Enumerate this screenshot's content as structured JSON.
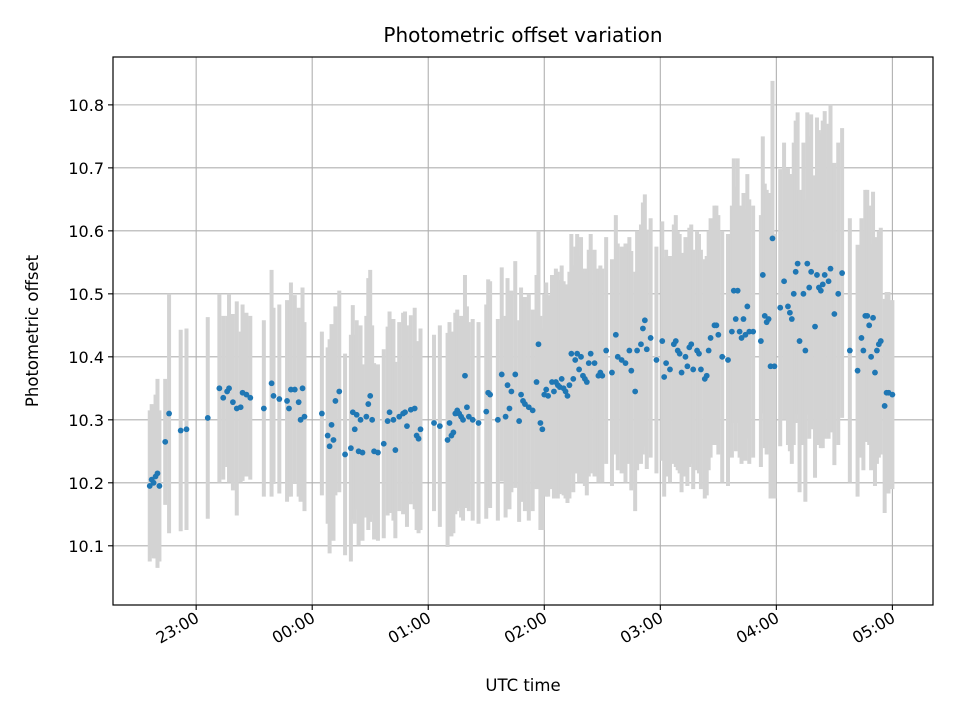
{
  "chart_data": {
    "type": "scatter",
    "title": "Photometric offset variation",
    "xlabel": "UTC time",
    "ylabel": "Photometric offset",
    "grid": true,
    "x_unit": "UTC time (HH:MM)",
    "xlim": [
      "22:17",
      "05:21"
    ],
    "ylim": [
      10.006,
      10.876
    ],
    "xticks": [
      "23:00",
      "00:00",
      "01:00",
      "02:00",
      "03:00",
      "04:00",
      "05:00"
    ],
    "yticks": [
      10.1,
      10.2,
      10.3,
      10.4,
      10.5,
      10.6,
      10.7,
      10.8
    ],
    "colors": {
      "points": "#1f77b4",
      "errorbars": "#d3d3d3",
      "grid": "#b0b0b0"
    },
    "points": [
      {
        "t": "22:36",
        "y": 10.195,
        "err": 0.12
      },
      {
        "t": "22:37",
        "y": 10.205,
        "err": 0.12
      },
      {
        "t": "22:38",
        "y": 10.2,
        "err": 0.12
      },
      {
        "t": "22:39",
        "y": 10.21,
        "err": 0.13
      },
      {
        "t": "22:40",
        "y": 10.215,
        "err": 0.15
      },
      {
        "t": "22:41",
        "y": 10.195,
        "err": 0.12
      },
      {
        "t": "22:44",
        "y": 10.265,
        "err": 0.1
      },
      {
        "t": "22:46",
        "y": 10.31,
        "err": 0.19
      },
      {
        "t": "22:52",
        "y": 10.283,
        "err": 0.16
      },
      {
        "t": "22:55",
        "y": 10.285,
        "err": 0.16
      },
      {
        "t": "23:06",
        "y": 10.303,
        "err": 0.16
      },
      {
        "t": "23:12",
        "y": 10.35,
        "err": 0.15
      },
      {
        "t": "23:14",
        "y": 10.335,
        "err": 0.13
      },
      {
        "t": "23:16",
        "y": 10.345,
        "err": 0.12
      },
      {
        "t": "23:17",
        "y": 10.35,
        "err": 0.15
      },
      {
        "t": "23:19",
        "y": 10.328,
        "err": 0.14
      },
      {
        "t": "23:21",
        "y": 10.318,
        "err": 0.17
      },
      {
        "t": "23:23",
        "y": 10.32,
        "err": 0.12
      },
      {
        "t": "23:24",
        "y": 10.343,
        "err": 0.14
      },
      {
        "t": "23:26",
        "y": 10.34,
        "err": 0.13
      },
      {
        "t": "23:28",
        "y": 10.335,
        "err": 0.13
      },
      {
        "t": "23:35",
        "y": 10.318,
        "err": 0.14
      },
      {
        "t": "23:39",
        "y": 10.358,
        "err": 0.18
      },
      {
        "t": "23:40",
        "y": 10.338,
        "err": 0.14
      },
      {
        "t": "23:43",
        "y": 10.333,
        "err": 0.15
      },
      {
        "t": "23:47",
        "y": 10.33,
        "err": 0.16
      },
      {
        "t": "23:48",
        "y": 10.318,
        "err": 0.14
      },
      {
        "t": "23:49",
        "y": 10.348,
        "err": 0.17
      },
      {
        "t": "23:51",
        "y": 10.348,
        "err": 0.15
      },
      {
        "t": "23:53",
        "y": 10.328,
        "err": 0.15
      },
      {
        "t": "23:54",
        "y": 10.3,
        "err": 0.13
      },
      {
        "t": "23:55",
        "y": 10.35,
        "err": 0.16
      },
      {
        "t": "23:56",
        "y": 10.305,
        "err": 0.15
      },
      {
        "t": "00:05",
        "y": 10.31,
        "err": 0.13
      },
      {
        "t": "00:08",
        "y": 10.275,
        "err": 0.14
      },
      {
        "t": "00:09",
        "y": 10.258,
        "err": 0.17
      },
      {
        "t": "00:10",
        "y": 10.292,
        "err": 0.16
      },
      {
        "t": "00:11",
        "y": 10.268,
        "err": 0.16
      },
      {
        "t": "00:12",
        "y": 10.33,
        "err": 0.15
      },
      {
        "t": "00:14",
        "y": 10.345,
        "err": 0.16
      },
      {
        "t": "00:17",
        "y": 10.245,
        "err": 0.16
      },
      {
        "t": "00:20",
        "y": 10.255,
        "err": 0.18
      },
      {
        "t": "00:21",
        "y": 10.312,
        "err": 0.17
      },
      {
        "t": "00:22",
        "y": 10.285,
        "err": 0.15
      },
      {
        "t": "00:23",
        "y": 10.308,
        "err": 0.15
      },
      {
        "t": "00:24",
        "y": 10.25,
        "err": 0.15
      },
      {
        "t": "00:25",
        "y": 10.3,
        "err": 0.15
      },
      {
        "t": "00:26",
        "y": 10.248,
        "err": 0.14
      },
      {
        "t": "00:28",
        "y": 10.305,
        "err": 0.16
      },
      {
        "t": "00:29",
        "y": 10.325,
        "err": 0.2
      },
      {
        "t": "00:30",
        "y": 10.338,
        "err": 0.2
      },
      {
        "t": "00:31",
        "y": 10.3,
        "err": 0.15
      },
      {
        "t": "00:32",
        "y": 10.25,
        "err": 0.14
      },
      {
        "t": "00:34",
        "y": 10.248,
        "err": 0.14
      },
      {
        "t": "00:37",
        "y": 10.262,
        "err": 0.15
      },
      {
        "t": "00:39",
        "y": 10.298,
        "err": 0.15
      },
      {
        "t": "00:40",
        "y": 10.312,
        "err": 0.16
      },
      {
        "t": "00:42",
        "y": 10.3,
        "err": 0.16
      },
      {
        "t": "00:43",
        "y": 10.252,
        "err": 0.14
      },
      {
        "t": "00:45",
        "y": 10.305,
        "err": 0.15
      },
      {
        "t": "00:47",
        "y": 10.31,
        "err": 0.16
      },
      {
        "t": "00:48",
        "y": 10.312,
        "err": 0.16
      },
      {
        "t": "00:49",
        "y": 10.29,
        "err": 0.16
      },
      {
        "t": "00:51",
        "y": 10.316,
        "err": 0.15
      },
      {
        "t": "00:53",
        "y": 10.318,
        "err": 0.16
      },
      {
        "t": "00:54",
        "y": 10.275,
        "err": 0.15
      },
      {
        "t": "00:55",
        "y": 10.27,
        "err": 0.15
      },
      {
        "t": "00:56",
        "y": 10.285,
        "err": 0.16
      },
      {
        "t": "01:03",
        "y": 10.295,
        "err": 0.14
      },
      {
        "t": "01:06",
        "y": 10.29,
        "err": 0.16
      },
      {
        "t": "01:10",
        "y": 10.268,
        "err": 0.17
      },
      {
        "t": "01:11",
        "y": 10.295,
        "err": 0.16
      },
      {
        "t": "01:12",
        "y": 10.275,
        "err": 0.16
      },
      {
        "t": "01:13",
        "y": 10.28,
        "err": 0.16
      },
      {
        "t": "01:14",
        "y": 10.31,
        "err": 0.16
      },
      {
        "t": "01:15",
        "y": 10.315,
        "err": 0.16
      },
      {
        "t": "01:16",
        "y": 10.31,
        "err": 0.15
      },
      {
        "t": "01:17",
        "y": 10.305,
        "err": 0.16
      },
      {
        "t": "01:18",
        "y": 10.3,
        "err": 0.16
      },
      {
        "t": "01:19",
        "y": 10.37,
        "err": 0.16
      },
      {
        "t": "01:20",
        "y": 10.32,
        "err": 0.16
      },
      {
        "t": "01:21",
        "y": 10.305,
        "err": 0.15
      },
      {
        "t": "01:23",
        "y": 10.3,
        "err": 0.16
      },
      {
        "t": "01:26",
        "y": 10.295,
        "err": 0.16
      },
      {
        "t": "01:30",
        "y": 10.313,
        "err": 0.17
      },
      {
        "t": "01:31",
        "y": 10.343,
        "err": 0.18
      },
      {
        "t": "01:32",
        "y": 10.34,
        "err": 0.18
      },
      {
        "t": "01:36",
        "y": 10.3,
        "err": 0.16
      },
      {
        "t": "01:38",
        "y": 10.372,
        "err": 0.17
      },
      {
        "t": "01:40",
        "y": 10.305,
        "err": 0.16
      },
      {
        "t": "01:41",
        "y": 10.355,
        "err": 0.17
      },
      {
        "t": "01:42",
        "y": 10.318,
        "err": 0.16
      },
      {
        "t": "01:43",
        "y": 10.345,
        "err": 0.16
      },
      {
        "t": "01:45",
        "y": 10.372,
        "err": 0.18
      },
      {
        "t": "01:47",
        "y": 10.298,
        "err": 0.16
      },
      {
        "t": "01:48",
        "y": 10.34,
        "err": 0.17
      },
      {
        "t": "01:49",
        "y": 10.33,
        "err": 0.16
      },
      {
        "t": "01:50",
        "y": 10.325,
        "err": 0.17
      },
      {
        "t": "01:52",
        "y": 10.32,
        "err": 0.18
      },
      {
        "t": "01:54",
        "y": 10.315,
        "err": 0.16
      },
      {
        "t": "01:56",
        "y": 10.36,
        "err": 0.17
      },
      {
        "t": "01:57",
        "y": 10.42,
        "err": 0.18
      },
      {
        "t": "01:58",
        "y": 10.295,
        "err": 0.17
      },
      {
        "t": "01:59",
        "y": 10.285,
        "err": 0.16
      },
      {
        "t": "02:00",
        "y": 10.34,
        "err": 0.16
      },
      {
        "t": "02:01",
        "y": 10.348,
        "err": 0.17
      },
      {
        "t": "02:02",
        "y": 10.338,
        "err": 0.16
      },
      {
        "t": "02:04",
        "y": 10.36,
        "err": 0.17
      },
      {
        "t": "02:05",
        "y": 10.345,
        "err": 0.17
      },
      {
        "t": "02:06",
        "y": 10.36,
        "err": 0.18
      },
      {
        "t": "02:07",
        "y": 10.355,
        "err": 0.18
      },
      {
        "t": "02:08",
        "y": 10.352,
        "err": 0.17
      },
      {
        "t": "02:09",
        "y": 10.365,
        "err": 0.18
      },
      {
        "t": "02:10",
        "y": 10.35,
        "err": 0.17
      },
      {
        "t": "02:11",
        "y": 10.345,
        "err": 0.17
      },
      {
        "t": "02:12",
        "y": 10.338,
        "err": 0.17
      },
      {
        "t": "02:13",
        "y": 10.355,
        "err": 0.18
      },
      {
        "t": "02:14",
        "y": 10.405,
        "err": 0.19
      },
      {
        "t": "02:15",
        "y": 10.365,
        "err": 0.18
      },
      {
        "t": "02:16",
        "y": 10.395,
        "err": 0.18
      },
      {
        "t": "02:17",
        "y": 10.405,
        "err": 0.19
      },
      {
        "t": "02:18",
        "y": 10.38,
        "err": 0.18
      },
      {
        "t": "02:19",
        "y": 10.4,
        "err": 0.19
      },
      {
        "t": "02:20",
        "y": 10.37,
        "err": 0.17
      },
      {
        "t": "02:21",
        "y": 10.365,
        "err": 0.17
      },
      {
        "t": "02:22",
        "y": 10.36,
        "err": 0.18
      },
      {
        "t": "02:23",
        "y": 10.39,
        "err": 0.18
      },
      {
        "t": "02:24",
        "y": 10.405,
        "err": 0.19
      },
      {
        "t": "02:26",
        "y": 10.39,
        "err": 0.18
      },
      {
        "t": "02:28",
        "y": 10.37,
        "err": 0.17
      },
      {
        "t": "02:29",
        "y": 10.375,
        "err": 0.17
      },
      {
        "t": "02:30",
        "y": 10.37,
        "err": 0.17
      },
      {
        "t": "02:32",
        "y": 10.41,
        "err": 0.18
      },
      {
        "t": "02:35",
        "y": 10.375,
        "err": 0.18
      },
      {
        "t": "02:37",
        "y": 10.435,
        "err": 0.19
      },
      {
        "t": "02:38",
        "y": 10.4,
        "err": 0.18
      },
      {
        "t": "02:40",
        "y": 10.395,
        "err": 0.18
      },
      {
        "t": "02:42",
        "y": 10.39,
        "err": 0.19
      },
      {
        "t": "02:44",
        "y": 10.41,
        "err": 0.18
      },
      {
        "t": "02:45",
        "y": 10.378,
        "err": 0.19
      },
      {
        "t": "02:47",
        "y": 10.345,
        "err": 0.19
      },
      {
        "t": "02:48",
        "y": 10.41,
        "err": 0.19
      },
      {
        "t": "02:50",
        "y": 10.42,
        "err": 0.19
      },
      {
        "t": "02:51",
        "y": 10.445,
        "err": 0.2
      },
      {
        "t": "02:52",
        "y": 10.458,
        "err": 0.2
      },
      {
        "t": "02:53",
        "y": 10.412,
        "err": 0.19
      },
      {
        "t": "02:55",
        "y": 10.43,
        "err": 0.19
      },
      {
        "t": "02:58",
        "y": 10.395,
        "err": 0.18
      },
      {
        "t": "03:01",
        "y": 10.425,
        "err": 0.19
      },
      {
        "t": "03:02",
        "y": 10.368,
        "err": 0.19
      },
      {
        "t": "03:03",
        "y": 10.39,
        "err": 0.18
      },
      {
        "t": "03:05",
        "y": 10.38,
        "err": 0.18
      },
      {
        "t": "03:07",
        "y": 10.42,
        "err": 0.19
      },
      {
        "t": "03:08",
        "y": 10.425,
        "err": 0.2
      },
      {
        "t": "03:09",
        "y": 10.41,
        "err": 0.19
      },
      {
        "t": "03:10",
        "y": 10.405,
        "err": 0.19
      },
      {
        "t": "03:11",
        "y": 10.375,
        "err": 0.19
      },
      {
        "t": "03:13",
        "y": 10.4,
        "err": 0.19
      },
      {
        "t": "03:14",
        "y": 10.385,
        "err": 0.19
      },
      {
        "t": "03:15",
        "y": 10.415,
        "err": 0.19
      },
      {
        "t": "03:16",
        "y": 10.42,
        "err": 0.19
      },
      {
        "t": "03:17",
        "y": 10.38,
        "err": 0.19
      },
      {
        "t": "03:19",
        "y": 10.41,
        "err": 0.19
      },
      {
        "t": "03:20",
        "y": 10.405,
        "err": 0.19
      },
      {
        "t": "03:21",
        "y": 10.38,
        "err": 0.19
      },
      {
        "t": "03:23",
        "y": 10.365,
        "err": 0.19
      },
      {
        "t": "03:24",
        "y": 10.37,
        "err": 0.19
      },
      {
        "t": "03:25",
        "y": 10.41,
        "err": 0.19
      },
      {
        "t": "03:26",
        "y": 10.43,
        "err": 0.19
      },
      {
        "t": "03:28",
        "y": 10.45,
        "err": 0.19
      },
      {
        "t": "03:29",
        "y": 10.45,
        "err": 0.19
      },
      {
        "t": "03:30",
        "y": 10.435,
        "err": 0.19
      },
      {
        "t": "03:32",
        "y": 10.4,
        "err": 0.2
      },
      {
        "t": "03:35",
        "y": 10.395,
        "err": 0.2
      },
      {
        "t": "03:37",
        "y": 10.44,
        "err": 0.2
      },
      {
        "t": "03:38",
        "y": 10.505,
        "err": 0.21
      },
      {
        "t": "03:39",
        "y": 10.46,
        "err": 0.21
      },
      {
        "t": "03:40",
        "y": 10.505,
        "err": 0.21
      },
      {
        "t": "03:41",
        "y": 10.44,
        "err": 0.2
      },
      {
        "t": "03:42",
        "y": 10.43,
        "err": 0.2
      },
      {
        "t": "03:43",
        "y": 10.46,
        "err": 0.2
      },
      {
        "t": "03:44",
        "y": 10.435,
        "err": 0.2
      },
      {
        "t": "03:45",
        "y": 10.48,
        "err": 0.21
      },
      {
        "t": "03:46",
        "y": 10.44,
        "err": 0.21
      },
      {
        "t": "03:48",
        "y": 10.44,
        "err": 0.2
      },
      {
        "t": "03:52",
        "y": 10.425,
        "err": 0.2
      },
      {
        "t": "03:53",
        "y": 10.53,
        "err": 0.22
      },
      {
        "t": "03:54",
        "y": 10.465,
        "err": 0.21
      },
      {
        "t": "03:55",
        "y": 10.455,
        "err": 0.21
      },
      {
        "t": "03:56",
        "y": 10.46,
        "err": 0.2
      },
      {
        "t": "03:57",
        "y": 10.385,
        "err": 0.21
      },
      {
        "t": "03:58",
        "y": 10.588,
        "err": 0.25
      },
      {
        "t": "03:59",
        "y": 10.385,
        "err": 0.21
      },
      {
        "t": "04:02",
        "y": 10.478,
        "err": 0.22
      },
      {
        "t": "04:04",
        "y": 10.52,
        "err": 0.22
      },
      {
        "t": "04:06",
        "y": 10.48,
        "err": 0.22
      },
      {
        "t": "04:07",
        "y": 10.47,
        "err": 0.22
      },
      {
        "t": "04:08",
        "y": 10.46,
        "err": 0.23
      },
      {
        "t": "04:09",
        "y": 10.5,
        "err": 0.24
      },
      {
        "t": "04:10",
        "y": 10.535,
        "err": 0.24
      },
      {
        "t": "04:11",
        "y": 10.548,
        "err": 0.24
      },
      {
        "t": "04:12",
        "y": 10.425,
        "err": 0.24
      },
      {
        "t": "04:14",
        "y": 10.5,
        "err": 0.24
      },
      {
        "t": "04:15",
        "y": 10.41,
        "err": 0.24
      },
      {
        "t": "04:16",
        "y": 10.548,
        "err": 0.24
      },
      {
        "t": "04:17",
        "y": 10.51,
        "err": 0.24
      },
      {
        "t": "04:18",
        "y": 10.535,
        "err": 0.25
      },
      {
        "t": "04:20",
        "y": 10.448,
        "err": 0.24
      },
      {
        "t": "04:21",
        "y": 10.53,
        "err": 0.25
      },
      {
        "t": "04:22",
        "y": 10.51,
        "err": 0.25
      },
      {
        "t": "04:23",
        "y": 10.505,
        "err": 0.25
      },
      {
        "t": "04:24",
        "y": 10.515,
        "err": 0.26
      },
      {
        "t": "04:25",
        "y": 10.53,
        "err": 0.26
      },
      {
        "t": "04:27",
        "y": 10.52,
        "err": 0.25
      },
      {
        "t": "04:28",
        "y": 10.54,
        "err": 0.26
      },
      {
        "t": "04:30",
        "y": 10.468,
        "err": 0.24
      },
      {
        "t": "04:32",
        "y": 10.5,
        "err": 0.24
      },
      {
        "t": "04:34",
        "y": 10.533,
        "err": 0.23
      },
      {
        "t": "04:38",
        "y": 10.41,
        "err": 0.21
      },
      {
        "t": "04:42",
        "y": 10.378,
        "err": 0.2
      },
      {
        "t": "04:44",
        "y": 10.43,
        "err": 0.19
      },
      {
        "t": "04:45",
        "y": 10.41,
        "err": 0.19
      },
      {
        "t": "04:46",
        "y": 10.465,
        "err": 0.2
      },
      {
        "t": "04:47",
        "y": 10.465,
        "err": 0.2
      },
      {
        "t": "04:48",
        "y": 10.45,
        "err": 0.19
      },
      {
        "t": "04:49",
        "y": 10.4,
        "err": 0.18
      },
      {
        "t": "04:50",
        "y": 10.462,
        "err": 0.2
      },
      {
        "t": "04:51",
        "y": 10.375,
        "err": 0.18
      },
      {
        "t": "04:52",
        "y": 10.41,
        "err": 0.18
      },
      {
        "t": "04:53",
        "y": 10.42,
        "err": 0.18
      },
      {
        "t": "04:54",
        "y": 10.425,
        "err": 0.18
      },
      {
        "t": "04:56",
        "y": 10.322,
        "err": 0.17
      },
      {
        "t": "04:57",
        "y": 10.343,
        "err": 0.16
      },
      {
        "t": "04:58",
        "y": 10.343,
        "err": 0.16
      },
      {
        "t": "05:00",
        "y": 10.34,
        "err": 0.15
      }
    ]
  }
}
